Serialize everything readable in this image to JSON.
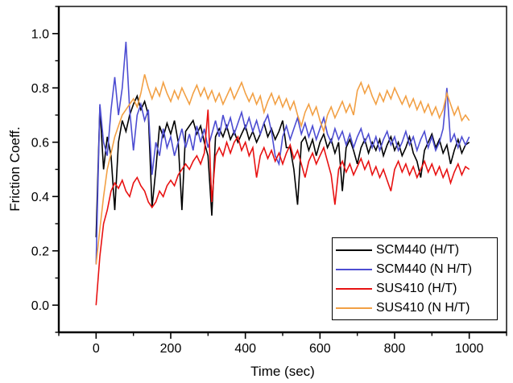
{
  "chart_data": {
    "type": "line",
    "title": "",
    "xlabel": "Time (sec)",
    "ylabel": "Friction Coeff.",
    "xlim": [
      -100,
      1100
    ],
    "ylim": [
      -0.1,
      1.1
    ],
    "grid": false,
    "legend_position": "bottom-right",
    "xticks": {
      "major": [
        0,
        200,
        400,
        600,
        800,
        1000
      ],
      "labels": [
        "0",
        "200",
        "400",
        "600",
        "800",
        "1000"
      ],
      "minor_step": 100
    },
    "yticks": {
      "major": [
        0.0,
        0.2,
        0.4,
        0.6,
        0.8,
        1.0
      ],
      "labels": [
        "0.0",
        "0.2",
        "0.4",
        "0.6",
        "0.8",
        "1.0"
      ],
      "minor_step": 0.1
    },
    "x_step": 10,
    "series": [
      {
        "name": "SCM440 (H/T)",
        "color": "#000000",
        "values": [
          0.25,
          0.73,
          0.5,
          0.62,
          0.55,
          0.35,
          0.6,
          0.68,
          0.64,
          0.7,
          0.74,
          0.77,
          0.72,
          0.75,
          0.7,
          0.36,
          0.5,
          0.66,
          0.62,
          0.67,
          0.63,
          0.68,
          0.6,
          0.35,
          0.64,
          0.66,
          0.68,
          0.63,
          0.66,
          0.6,
          0.55,
          0.33,
          0.62,
          0.65,
          0.62,
          0.66,
          0.61,
          0.64,
          0.6,
          0.63,
          0.66,
          0.61,
          0.64,
          0.6,
          0.63,
          0.67,
          0.62,
          0.65,
          0.61,
          0.64,
          0.68,
          0.58,
          0.58,
          0.5,
          0.37,
          0.6,
          0.62,
          0.57,
          0.61,
          0.55,
          0.6,
          0.63,
          0.58,
          0.61,
          0.56,
          0.6,
          0.42,
          0.58,
          0.61,
          0.57,
          0.52,
          0.58,
          0.61,
          0.56,
          0.6,
          0.57,
          0.61,
          0.55,
          0.59,
          0.62,
          0.57,
          0.6,
          0.55,
          0.58,
          0.62,
          0.56,
          0.53,
          0.47,
          0.57,
          0.6,
          0.63,
          0.58,
          0.61,
          0.56,
          0.59,
          0.52,
          0.57,
          0.61,
          0.56,
          0.59,
          0.6
        ]
      },
      {
        "name": "SCM440 (N H/T)",
        "color": "#4d4dd2",
        "values": [
          0.15,
          0.74,
          0.6,
          0.55,
          0.72,
          0.84,
          0.7,
          0.8,
          0.97,
          0.72,
          0.57,
          0.7,
          0.74,
          0.68,
          0.72,
          0.48,
          0.6,
          0.55,
          0.65,
          0.58,
          0.62,
          0.55,
          0.6,
          0.65,
          0.58,
          0.63,
          0.57,
          0.66,
          0.6,
          0.65,
          0.58,
          0.63,
          0.68,
          0.62,
          0.7,
          0.65,
          0.69,
          0.63,
          0.67,
          0.71,
          0.65,
          0.69,
          0.64,
          0.68,
          0.63,
          0.67,
          0.7,
          0.64,
          0.55,
          0.52,
          0.62,
          0.66,
          0.61,
          0.65,
          0.69,
          0.63,
          0.67,
          0.62,
          0.66,
          0.61,
          0.65,
          0.69,
          0.63,
          0.6,
          0.65,
          0.61,
          0.64,
          0.59,
          0.63,
          0.58,
          0.62,
          0.65,
          0.6,
          0.63,
          0.58,
          0.62,
          0.57,
          0.61,
          0.64,
          0.59,
          0.62,
          0.57,
          0.6,
          0.64,
          0.59,
          0.62,
          0.57,
          0.61,
          0.64,
          0.58,
          0.62,
          0.57,
          0.6,
          0.65,
          0.8,
          0.6,
          0.63,
          0.58,
          0.62,
          0.59,
          0.62
        ]
      },
      {
        "name": "SUS410 (H/T)",
        "color": "#e81212",
        "values": [
          0.0,
          0.18,
          0.3,
          0.35,
          0.42,
          0.45,
          0.43,
          0.46,
          0.42,
          0.4,
          0.45,
          0.47,
          0.44,
          0.42,
          0.38,
          0.36,
          0.38,
          0.42,
          0.4,
          0.44,
          0.46,
          0.44,
          0.48,
          0.5,
          0.52,
          0.5,
          0.53,
          0.55,
          0.52,
          0.56,
          0.72,
          0.38,
          0.55,
          0.58,
          0.55,
          0.6,
          0.56,
          0.6,
          0.62,
          0.57,
          0.6,
          0.55,
          0.58,
          0.47,
          0.55,
          0.58,
          0.54,
          0.57,
          0.53,
          0.56,
          0.52,
          0.56,
          0.59,
          0.54,
          0.57,
          0.52,
          0.47,
          0.53,
          0.56,
          0.52,
          0.55,
          0.58,
          0.53,
          0.48,
          0.37,
          0.5,
          0.53,
          0.49,
          0.52,
          0.48,
          0.51,
          0.54,
          0.5,
          0.53,
          0.48,
          0.51,
          0.47,
          0.5,
          0.46,
          0.42,
          0.5,
          0.53,
          0.49,
          0.52,
          0.48,
          0.51,
          0.47,
          0.5,
          0.53,
          0.49,
          0.52,
          0.48,
          0.51,
          0.47,
          0.5,
          0.45,
          0.49,
          0.52,
          0.48,
          0.51,
          0.5
        ]
      },
      {
        "name": "SUS410 (N H/T)",
        "color": "#f2a044",
        "values": [
          0.15,
          0.28,
          0.4,
          0.5,
          0.56,
          0.62,
          0.66,
          0.7,
          0.72,
          0.74,
          0.76,
          0.73,
          0.78,
          0.85,
          0.8,
          0.76,
          0.8,
          0.77,
          0.82,
          0.78,
          0.75,
          0.79,
          0.76,
          0.8,
          0.77,
          0.74,
          0.78,
          0.81,
          0.77,
          0.8,
          0.76,
          0.79,
          0.75,
          0.78,
          0.74,
          0.77,
          0.8,
          0.76,
          0.79,
          0.82,
          0.78,
          0.75,
          0.78,
          0.74,
          0.77,
          0.71,
          0.75,
          0.78,
          0.74,
          0.77,
          0.73,
          0.76,
          0.72,
          0.75,
          0.7,
          0.66,
          0.71,
          0.74,
          0.7,
          0.73,
          0.68,
          0.64,
          0.7,
          0.73,
          0.69,
          0.72,
          0.75,
          0.71,
          0.74,
          0.7,
          0.79,
          0.82,
          0.78,
          0.81,
          0.77,
          0.74,
          0.78,
          0.75,
          0.79,
          0.76,
          0.8,
          0.77,
          0.74,
          0.77,
          0.73,
          0.76,
          0.72,
          0.75,
          0.71,
          0.74,
          0.7,
          0.73,
          0.69,
          0.72,
          0.78,
          0.74,
          0.7,
          0.73,
          0.68,
          0.7,
          0.68
        ]
      }
    ]
  }
}
